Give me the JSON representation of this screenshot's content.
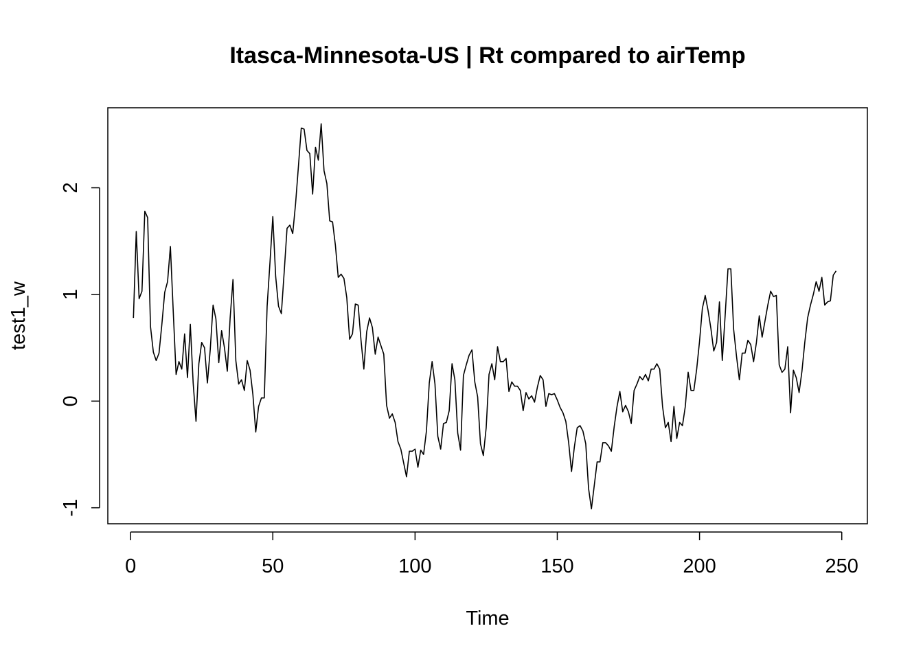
{
  "chart_data": {
    "type": "line",
    "title": "Itasca-Minnesota-US | Rt compared to airTemp",
    "xlabel": "Time",
    "ylabel": "test1_w",
    "xlim": [
      -8,
      259
    ],
    "ylim": [
      -1.15,
      2.75
    ],
    "x_ticks": [
      0,
      50,
      100,
      150,
      200,
      250
    ],
    "y_ticks": [
      -1,
      0,
      1,
      2
    ],
    "grid": false,
    "line_color": "#000000",
    "series": [
      {
        "x_start": 1,
        "values": [
          0.78,
          1.59,
          0.96,
          1.03,
          1.78,
          1.72,
          0.7,
          0.46,
          0.38,
          0.45,
          0.72,
          1.02,
          1.12,
          1.45,
          0.84,
          0.25,
          0.37,
          0.3,
          0.63,
          0.22,
          0.72,
          0.17,
          -0.19,
          0.35,
          0.55,
          0.5,
          0.17,
          0.48,
          0.9,
          0.77,
          0.36,
          0.66,
          0.5,
          0.28,
          0.78,
          1.14,
          0.38,
          0.16,
          0.2,
          0.1,
          0.38,
          0.29,
          0.06,
          -0.29,
          -0.05,
          0.03,
          0.03,
          0.89,
          1.3,
          1.73,
          1.17,
          0.89,
          0.82,
          1.21,
          1.62,
          1.65,
          1.57,
          1.85,
          2.2,
          2.56,
          2.55,
          2.35,
          2.32,
          1.94,
          2.38,
          2.26,
          2.6,
          2.16,
          2.04,
          1.69,
          1.68,
          1.46,
          1.16,
          1.19,
          1.15,
          0.97,
          0.58,
          0.63,
          0.91,
          0.9,
          0.57,
          0.3,
          0.65,
          0.78,
          0.69,
          0.44,
          0.6,
          0.52,
          0.44,
          -0.04,
          -0.16,
          -0.12,
          -0.2,
          -0.38,
          -0.45,
          -0.58,
          -0.71,
          -0.47,
          -0.47,
          -0.45,
          -0.62,
          -0.46,
          -0.5,
          -0.28,
          0.17,
          0.37,
          0.16,
          -0.33,
          -0.45,
          -0.21,
          -0.2,
          -0.09,
          0.35,
          0.2,
          -0.3,
          -0.46,
          0.24,
          0.34,
          0.43,
          0.48,
          0.18,
          0.04,
          -0.4,
          -0.51,
          -0.25,
          0.25,
          0.35,
          0.2,
          0.51,
          0.37,
          0.37,
          0.4,
          0.09,
          0.18,
          0.14,
          0.14,
          0.1,
          -0.09,
          0.08,
          0.02,
          0.05,
          -0.01,
          0.13,
          0.24,
          0.2,
          -0.05,
          0.07,
          0.06,
          0.07,
          0.01,
          -0.06,
          -0.11,
          -0.19,
          -0.39,
          -0.66,
          -0.43,
          -0.25,
          -0.23,
          -0.28,
          -0.4,
          -0.82,
          -1.01,
          -0.79,
          -0.57,
          -0.57,
          -0.39,
          -0.39,
          -0.42,
          -0.47,
          -0.24,
          -0.05,
          0.09,
          -0.1,
          -0.04,
          -0.1,
          -0.21,
          0.1,
          0.16,
          0.23,
          0.2,
          0.25,
          0.19,
          0.3,
          0.3,
          0.35,
          0.3,
          -0.05,
          -0.25,
          -0.2,
          -0.38,
          -0.05,
          -0.35,
          -0.2,
          -0.23,
          -0.05,
          0.27,
          0.1,
          0.1,
          0.3,
          0.56,
          0.87,
          0.99,
          0.85,
          0.68,
          0.47,
          0.55,
          0.93,
          0.38,
          0.8,
          1.24,
          1.24,
          0.67,
          0.42,
          0.2,
          0.45,
          0.45,
          0.57,
          0.53,
          0.37,
          0.55,
          0.8,
          0.6,
          0.75,
          0.9,
          1.03,
          0.98,
          0.99,
          0.34,
          0.27,
          0.3,
          0.51,
          -0.11,
          0.29,
          0.22,
          0.08,
          0.28,
          0.55,
          0.78,
          0.9,
          1.0,
          1.12,
          1.03,
          1.16,
          0.9,
          0.93,
          0.94,
          1.18,
          1.22
        ]
      }
    ]
  }
}
